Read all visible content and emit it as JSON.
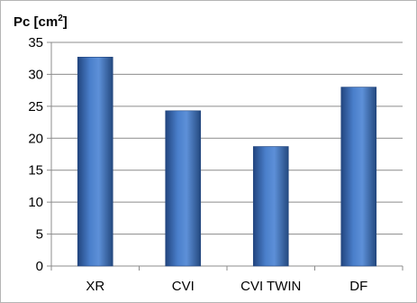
{
  "chart_data": {
    "type": "bar",
    "categories": [
      "XR",
      "CVI",
      "CVI TWIN",
      "DF"
    ],
    "values": [
      32.7,
      24.3,
      18.7,
      28.0
    ],
    "title": "",
    "xlabel": "",
    "ylabel_prefix": "Pc [cm",
    "ylabel_sup": "2",
    "ylabel_suffix": "]",
    "ylim": [
      0,
      35
    ],
    "yticks": [
      0,
      5,
      10,
      15,
      20,
      25,
      30,
      35
    ],
    "grid": true,
    "legend": "none",
    "bar_color": "#3f6fba",
    "bar_dark": "#22457f",
    "grid_color": "#8c8c8c"
  }
}
